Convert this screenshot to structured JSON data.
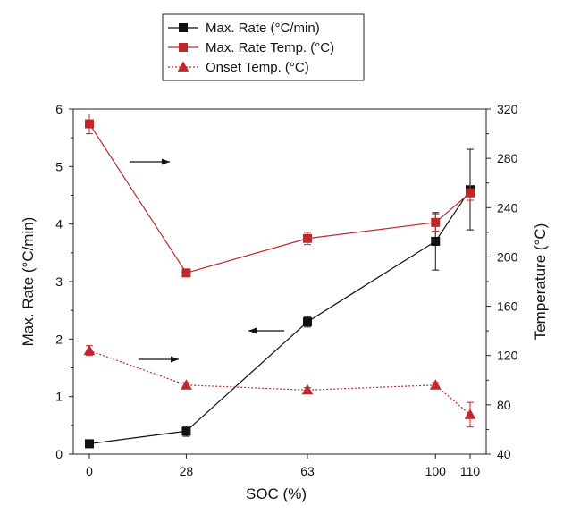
{
  "chart_data": {
    "type": "line",
    "x_values": [
      0,
      28,
      63,
      100,
      110
    ],
    "xlabel": "SOC (%)",
    "x_tick_labels": [
      "0",
      "28",
      "63",
      "100",
      "110"
    ],
    "ylabel_left": "Max. Rate (°C/min)",
    "ylim_left": [
      0,
      6
    ],
    "y_ticks_left": [
      "0",
      "1",
      "2",
      "3",
      "4",
      "5",
      "6"
    ],
    "ylabel_right": "Temperature (°C)",
    "ylim_right": [
      40,
      320
    ],
    "y_ticks_right": [
      "40",
      "80",
      "120",
      "160",
      "200",
      "240",
      "280",
      "320"
    ],
    "legend_position": "top-left, outside plot",
    "series": [
      {
        "name": "Max. Rate (°C/min)",
        "axis": "left",
        "color": "#111111",
        "marker": "square",
        "line_style": "solid",
        "values": [
          0.18,
          0.4,
          2.3,
          3.7,
          4.6
        ],
        "errors": [
          0.03,
          0.09,
          0.09,
          0.5,
          0.7
        ]
      },
      {
        "name": "Max. Rate Temp. (°C)",
        "axis": "right",
        "color": "#c0272d",
        "marker": "square",
        "line_style": "solid",
        "values": [
          308,
          187,
          215,
          228,
          252
        ],
        "errors": [
          8,
          2,
          5,
          7,
          6
        ]
      },
      {
        "name": "Onset Temp. (°C)",
        "axis": "right",
        "color": "#c0272d",
        "marker": "triangle",
        "line_style": "dotted",
        "values": [
          124,
          96,
          92,
          96,
          72
        ],
        "errors": [
          4,
          2,
          2,
          2,
          10
        ]
      }
    ],
    "annotations": [
      {
        "type": "arrow",
        "direction": "right",
        "points_to": "right axis",
        "near_series": "Max. Rate Temp. (°C)"
      },
      {
        "type": "arrow",
        "direction": "left",
        "points_to": "left axis",
        "near_series": "Max. Rate (°C/min)"
      },
      {
        "type": "arrow",
        "direction": "right",
        "points_to": "right axis",
        "near_series": "Onset Temp. (°C)"
      }
    ]
  }
}
